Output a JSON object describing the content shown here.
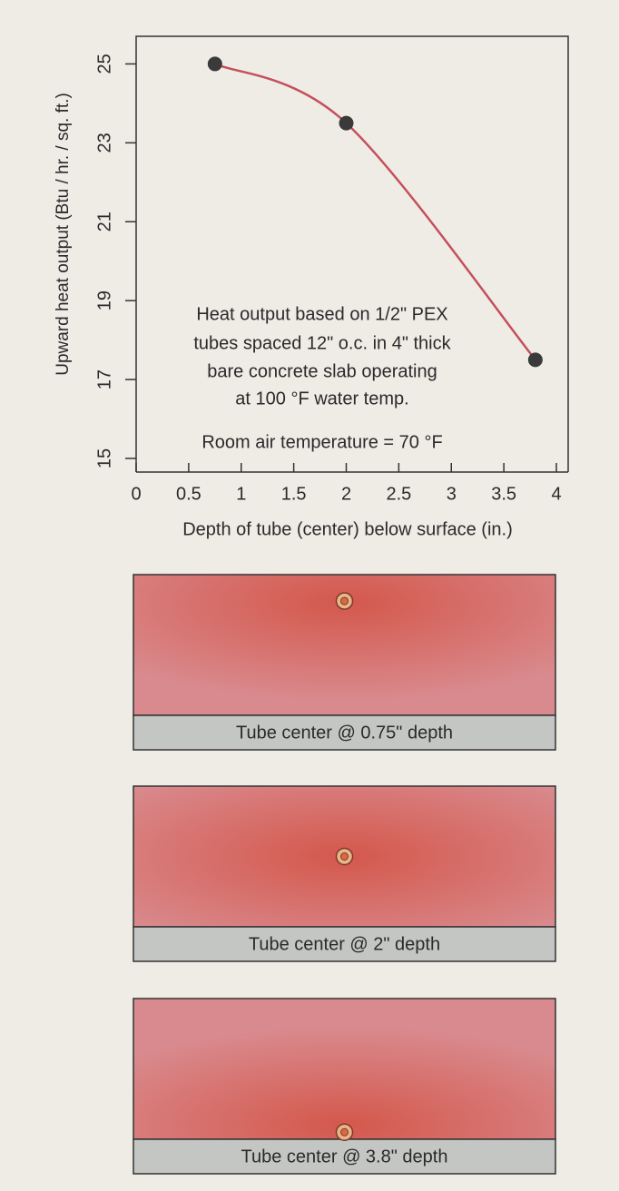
{
  "chart_data": {
    "type": "line",
    "y_label": "Upward heat output (Btu / hr. / sq. ft.)",
    "x_label": "Depth of tube (center) below surface (in.)",
    "annotation": [
      "Heat output based on 1/2\" PEX",
      "tubes spaced 12\" o.c. in 4\" thick",
      "bare concrete slab operating",
      "at 100 °F water temp."
    ],
    "note": "Room air temperature = 70 °F",
    "x": [
      0.75,
      2,
      3.8
    ],
    "series": [
      {
        "values": [
          25,
          23.5,
          17.5
        ],
        "color": "#c4505c"
      }
    ],
    "xlim": [
      0,
      4
    ],
    "xticks": [
      0,
      0.5,
      1,
      1.5,
      2,
      2.5,
      3,
      3.5,
      4
    ],
    "ylim": [
      15,
      25.7
    ],
    "yticks": [
      15,
      17,
      19,
      21,
      23,
      25
    ]
  },
  "panels": [
    {
      "label": "Tube center @ 0.75\" depth"
    },
    {
      "label": "Tube center @ 2\" depth"
    },
    {
      "label": "Tube center @ 3.8\" depth"
    }
  ]
}
